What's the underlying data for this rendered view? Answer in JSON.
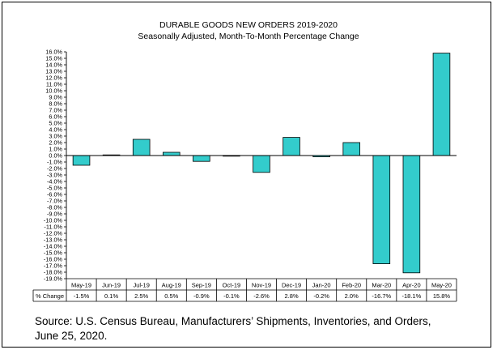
{
  "chart_data": {
    "type": "bar",
    "title": "DURABLE GOODS NEW ORDERS 2019-2020",
    "subtitle": "Seasonally  Adjusted,   Month-To-Month  Percentage Change",
    "categories": [
      "May-19",
      "Jun-19",
      "Jul-19",
      "Aug-19",
      "Sep-19",
      "Oct-19",
      "Nov-19",
      "Dec-19",
      "Jan-20",
      "Feb-20",
      "Mar-20",
      "Apr-20",
      "May-20"
    ],
    "values": [
      -1.5,
      0.1,
      2.5,
      0.5,
      -0.9,
      -0.1,
      -2.6,
      2.8,
      -0.2,
      2.0,
      -16.7,
      -18.1,
      15.8
    ],
    "ylim": [
      -19,
      16
    ],
    "ytick_step": 1,
    "ytick_format": "0.0%",
    "grid": false,
    "bar_color": "#33CCCC",
    "table": {
      "row_label": "% Change",
      "cells": [
        "-1.5%",
        "0.1%",
        "2.5%",
        "0.5%",
        "-0.9%",
        "-0.1%",
        "-2.6%",
        "2.8%",
        "-0.2%",
        "2.0%",
        "-16.7%",
        "-18.1%",
        "15.8%"
      ]
    }
  },
  "source": "Source: U.S. Census Bureau, Manufacturers’ Shipments, Inventories, and Orders, June 25, 2020."
}
